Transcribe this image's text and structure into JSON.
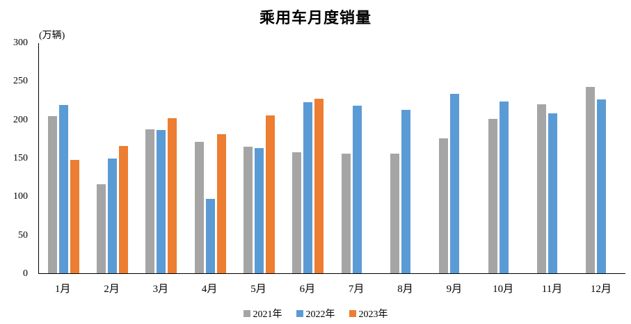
{
  "chart_data": {
    "type": "bar",
    "title": "乘用车月度销量",
    "y_axis_unit": "(万辆)",
    "categories": [
      "1月",
      "2月",
      "3月",
      "4月",
      "5月",
      "6月",
      "7月",
      "8月",
      "9月",
      "10月",
      "11月",
      "12月"
    ],
    "series": [
      {
        "name": "2021年",
        "color": "#A5A5A5",
        "values": [
          204.5,
          115.6,
          187.4,
          170.4,
          164.6,
          156.9,
          155.1,
          155.2,
          175.1,
          200.7,
          219.2,
          242.2
        ]
      },
      {
        "name": "2022年",
        "color": "#5B9BD5",
        "values": [
          218.6,
          148.7,
          186.4,
          96.5,
          162.3,
          222.2,
          217.4,
          212.5,
          233.2,
          223.1,
          207.5,
          226.3
        ]
      },
      {
        "name": "2023年",
        "color": "#ED7D31",
        "values": [
          146.9,
          165.3,
          201.7,
          181.1,
          204.8,
          226.8,
          null,
          null,
          null,
          null,
          null,
          null
        ]
      }
    ],
    "xlabel": "",
    "ylabel": "(万辆)",
    "ylim": [
      0,
      300
    ],
    "yticks": [
      0,
      50,
      100,
      150,
      200,
      250,
      300
    ],
    "grid": false,
    "legend_position": "bottom"
  }
}
